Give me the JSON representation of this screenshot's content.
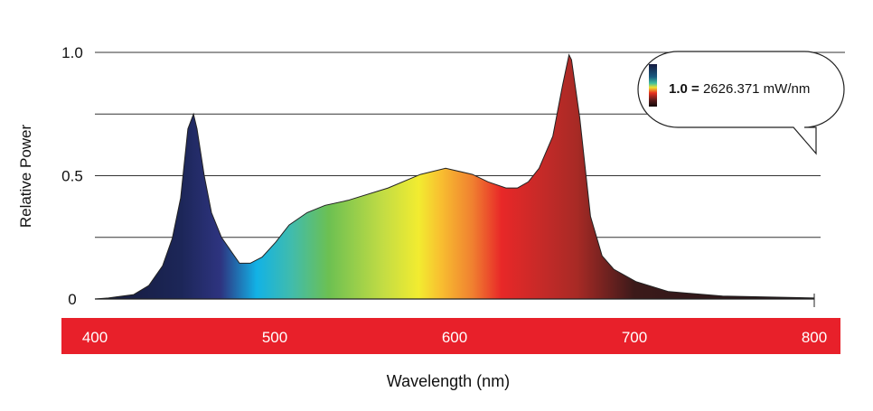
{
  "chart_data": {
    "type": "area",
    "title": "",
    "xlabel": "Wavelength (nm)",
    "ylabel": "Relative Power",
    "xlim": [
      400,
      800
    ],
    "ylim": [
      0,
      1.0
    ],
    "x_ticks": [
      "400",
      "500",
      "600",
      "700",
      "800"
    ],
    "y_ticks": [
      {
        "value": 0,
        "label": "0"
      },
      {
        "value": 0.5,
        "label": "0.5"
      },
      {
        "value": 1.0,
        "label": "1.0"
      }
    ],
    "gridlines": [
      0.25,
      0.5,
      0.75,
      1.0
    ],
    "grid": true,
    "fill": "spectral gradient by wavelength",
    "x_axis_band_color": "#e8202a",
    "points": [
      [
        400,
        0
      ],
      [
        407.5,
        0.004
      ],
      [
        421.6,
        0.018
      ],
      [
        430,
        0.055
      ],
      [
        437.7,
        0.135
      ],
      [
        443,
        0.245
      ],
      [
        447.7,
        0.41
      ],
      [
        451.7,
        0.69
      ],
      [
        454.8,
        0.75
      ],
      [
        456.8,
        0.69
      ],
      [
        460.8,
        0.5
      ],
      [
        464.8,
        0.35
      ],
      [
        470.4,
        0.25
      ],
      [
        480.4,
        0.145
      ],
      [
        486.4,
        0.145
      ],
      [
        493,
        0.17
      ],
      [
        500.5,
        0.23
      ],
      [
        508,
        0.3
      ],
      [
        518,
        0.35
      ],
      [
        528,
        0.38
      ],
      [
        540.7,
        0.4
      ],
      [
        563,
        0.45
      ],
      [
        581,
        0.505
      ],
      [
        595,
        0.53
      ],
      [
        610,
        0.505
      ],
      [
        618.6,
        0.475
      ],
      [
        628.6,
        0.45
      ],
      [
        635,
        0.45
      ],
      [
        641,
        0.475
      ],
      [
        647,
        0.53
      ],
      [
        654.6,
        0.66
      ],
      [
        660,
        0.865
      ],
      [
        663.6,
        0.99
      ],
      [
        665,
        0.97
      ],
      [
        669.6,
        0.735
      ],
      [
        675.6,
        0.335
      ],
      [
        682,
        0.175
      ],
      [
        688.6,
        0.12
      ],
      [
        701,
        0.07
      ],
      [
        719,
        0.03
      ],
      [
        749,
        0.012
      ],
      [
        800,
        0.004
      ]
    ],
    "annotation": {
      "bold": "1.0 =",
      "text": "2626.371 mW/nm",
      "legend": "color scale bar"
    }
  }
}
